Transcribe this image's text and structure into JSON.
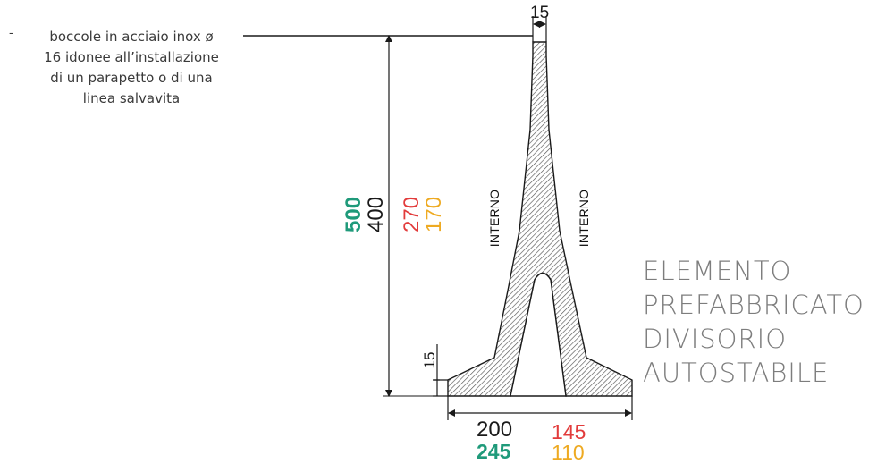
{
  "note": {
    "bullet": "-",
    "lines": [
      "boccole in acciaio inox ø",
      "16 idonee all’installazione",
      "di un parapetto o di una",
      "linea salvavita"
    ]
  },
  "title": {
    "lines": [
      "ELEMENTO",
      "PREFABBRICATO",
      "DIVISORIO",
      "AUTOSTABILE"
    ]
  },
  "dimensions": {
    "top_width": "15",
    "base_thickness": "15",
    "height_400": "400",
    "height_500": "500",
    "height_270": "270",
    "height_170": "170",
    "base_200": "200",
    "base_245": "245",
    "base_145": "145",
    "base_110": "110"
  },
  "side_labels": {
    "left": "INTERNO",
    "right": "INTERNO"
  },
  "colors": {
    "black": "#1a1a1a",
    "green": "#1f9a7a",
    "red": "#e23b3b",
    "orange": "#eeaa22",
    "title_gray": "#7d7d7d"
  }
}
